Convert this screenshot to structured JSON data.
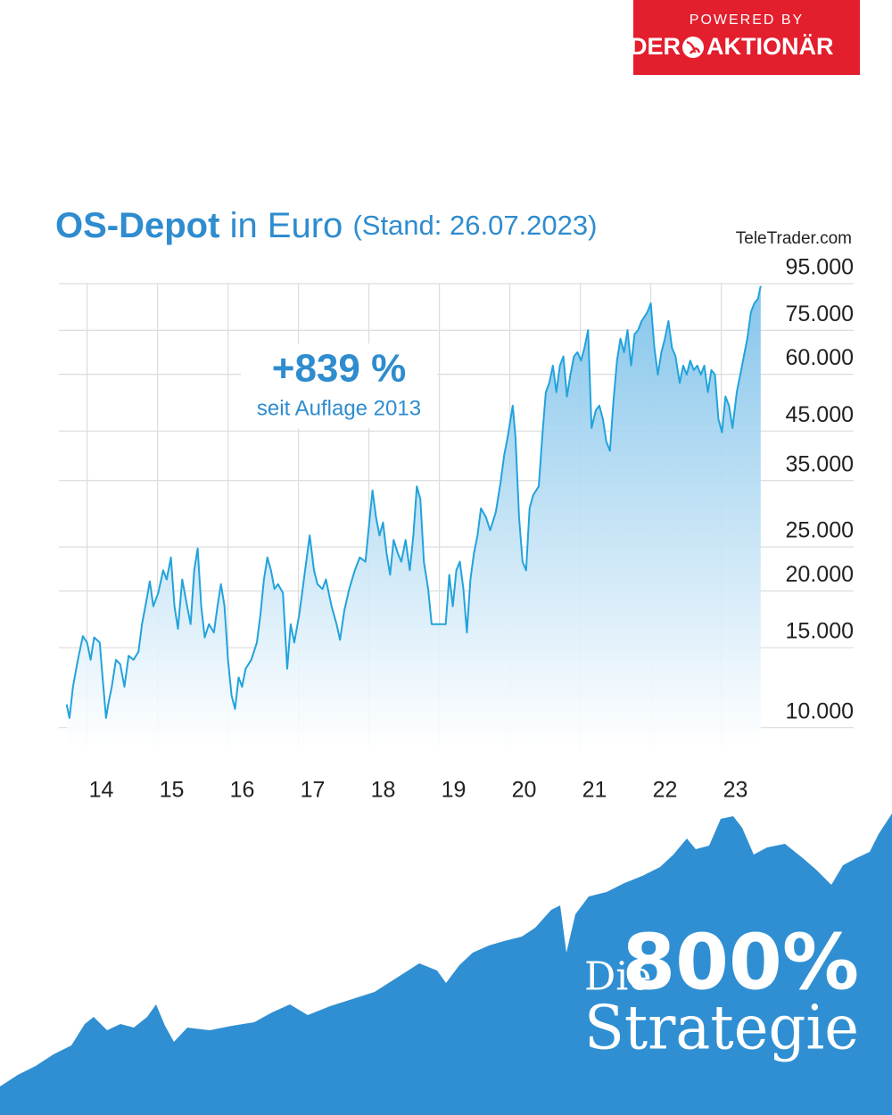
{
  "branding": {
    "powered_by": "POWERED BY",
    "logo_left": "DER",
    "logo_right": "AKTIONÄR"
  },
  "headline": {
    "prefix": "Die",
    "number": "800%",
    "word": "Strategie"
  },
  "chart_data": {
    "type": "line",
    "title": "OS-Depot",
    "title_unit": "in Euro",
    "subtitle": "(Stand: 26.07.2023)",
    "source": "TeleTrader.com",
    "annotations": [
      "+839 %",
      "seit Auflage 2013"
    ],
    "color": "#22a3dc",
    "log_scale": true,
    "grid": true,
    "xlim": [
      2013.6,
      2023.6
    ],
    "xticks": [
      {
        "value": 2014,
        "label": "14"
      },
      {
        "value": 2015,
        "label": "15"
      },
      {
        "value": 2016,
        "label": "16"
      },
      {
        "value": 2017,
        "label": "17"
      },
      {
        "value": 2018,
        "label": "18"
      },
      {
        "value": 2019,
        "label": "19"
      },
      {
        "value": 2020,
        "label": "20"
      },
      {
        "value": 2021,
        "label": "21"
      },
      {
        "value": 2022,
        "label": "22"
      },
      {
        "value": 2023,
        "label": "23"
      }
    ],
    "ylim": [
      9000,
      95000
    ],
    "yticks": [
      {
        "value": 10000,
        "label": "10.000"
      },
      {
        "value": 15000,
        "label": "15.000"
      },
      {
        "value": 20000,
        "label": "20.000"
      },
      {
        "value": 25000,
        "label": "25.000"
      },
      {
        "value": 35000,
        "label": "35.000"
      },
      {
        "value": 45000,
        "label": "45.000"
      },
      {
        "value": 60000,
        "label": "60.000"
      },
      {
        "value": 75000,
        "label": "75.000"
      },
      {
        "value": 95000,
        "label": "95.000"
      }
    ],
    "x": [
      2013.71,
      2013.75,
      2013.8,
      2013.87,
      2013.94,
      2014.0,
      2014.05,
      2014.1,
      2014.18,
      2014.22,
      2014.27,
      2014.3,
      2014.35,
      2014.41,
      2014.47,
      2014.53,
      2014.59,
      2014.66,
      2014.73,
      2014.78,
      2014.85,
      2014.89,
      2014.94,
      2015.01,
      2015.08,
      2015.13,
      2015.19,
      2015.24,
      2015.29,
      2015.35,
      2015.42,
      2015.47,
      2015.52,
      2015.57,
      2015.62,
      2015.67,
      2015.73,
      2015.8,
      2015.85,
      2015.9,
      2015.95,
      2016.0,
      2016.05,
      2016.1,
      2016.15,
      2016.2,
      2016.25,
      2016.33,
      2016.41,
      2016.46,
      2016.51,
      2016.56,
      2016.61,
      2016.66,
      2016.71,
      2016.78,
      2016.84,
      2016.89,
      2016.94,
      2017.01,
      2017.06,
      2017.11,
      2017.16,
      2017.22,
      2017.27,
      2017.34,
      2017.39,
      2017.47,
      2017.54,
      2017.59,
      2017.65,
      2017.72,
      2017.8,
      2017.87,
      2017.95,
      2018.0,
      2018.05,
      2018.1,
      2018.15,
      2018.2,
      2018.25,
      2018.3,
      2018.35,
      2018.41,
      2018.46,
      2018.52,
      2018.58,
      2018.63,
      2018.68,
      2018.73,
      2018.78,
      2018.84,
      2018.89,
      2018.96,
      2019.04,
      2019.09,
      2019.14,
      2019.19,
      2019.24,
      2019.29,
      2019.34,
      2019.39,
      2019.44,
      2019.49,
      2019.54,
      2019.59,
      2019.66,
      2019.72,
      2019.8,
      2019.87,
      2019.92,
      2019.97,
      2020.04,
      2020.08,
      2020.13,
      2020.18,
      2020.23,
      2020.28,
      2020.33,
      2020.41,
      2020.46,
      2020.51,
      2020.56,
      2020.61,
      2020.66,
      2020.71,
      2020.76,
      2020.81,
      2020.86,
      2020.91,
      2020.96,
      2021.01,
      2021.06,
      2021.11,
      2021.16,
      2021.22,
      2021.27,
      2021.32,
      2021.37,
      2021.42,
      2021.47,
      2021.52,
      2021.57,
      2021.62,
      2021.67,
      2021.72,
      2021.77,
      2021.82,
      2021.87,
      2021.95,
      2022.0,
      2022.05,
      2022.1,
      2022.15,
      2022.2,
      2022.25,
      2022.3,
      2022.35,
      2022.41,
      2022.46,
      2022.51,
      2022.56,
      2022.61,
      2022.66,
      2022.71,
      2022.76,
      2022.81,
      2022.86,
      2022.91,
      2022.96,
      2023.01,
      2023.06,
      2023.11,
      2023.16,
      2023.22,
      2023.27,
      2023.32,
      2023.37,
      2023.42,
      2023.47,
      2023.52,
      2023.56
    ],
    "values": [
      11250,
      10500,
      12300,
      14100,
      15900,
      15400,
      14100,
      15800,
      15400,
      12900,
      10500,
      11250,
      12300,
      14100,
      13800,
      12300,
      14400,
      14100,
      14700,
      16900,
      19350,
      21000,
      18500,
      19800,
      22200,
      21200,
      23700,
      18500,
      16500,
      21200,
      18500,
      16900,
      22200,
      24800,
      18500,
      15800,
      16900,
      16200,
      18500,
      20700,
      18500,
      14100,
      11770,
      10990,
      12900,
      12300,
      13480,
      14100,
      15400,
      17700,
      21200,
      23700,
      22200,
      20200,
      20700,
      19800,
      13480,
      16900,
      15400,
      17700,
      20200,
      23200,
      26500,
      22200,
      20700,
      20200,
      21200,
      18500,
      16900,
      15600,
      18100,
      20200,
      22200,
      23700,
      23200,
      27800,
      33300,
      29100,
      26500,
      28300,
      24200,
      21700,
      25900,
      24200,
      23200,
      25900,
      22200,
      26500,
      34000,
      31800,
      23200,
      20200,
      16900,
      16900,
      16900,
      16900,
      21700,
      18500,
      22200,
      23200,
      20200,
      16200,
      21200,
      24200,
      26500,
      30400,
      29100,
      27200,
      29800,
      34800,
      39900,
      43700,
      51200,
      43700,
      29100,
      23200,
      22200,
      30400,
      32500,
      34000,
      43700,
      54800,
      57400,
      62700,
      54800,
      62700,
      65700,
      53600,
      59900,
      65700,
      67100,
      64300,
      68700,
      75100,
      45700,
      50000,
      51200,
      47800,
      42600,
      40700,
      52300,
      64300,
      71900,
      67100,
      75100,
      62700,
      73500,
      75100,
      78600,
      82200,
      86000,
      68700,
      59900,
      67100,
      71900,
      78600,
      68700,
      65700,
      57400,
      62700,
      59900,
      64300,
      61300,
      62700,
      59900,
      62700,
      54800,
      61300,
      59900,
      47800,
      44700,
      53600,
      51200,
      45700,
      54800,
      59900,
      65700,
      71900,
      82200,
      86000,
      88000,
      93900
    ]
  }
}
